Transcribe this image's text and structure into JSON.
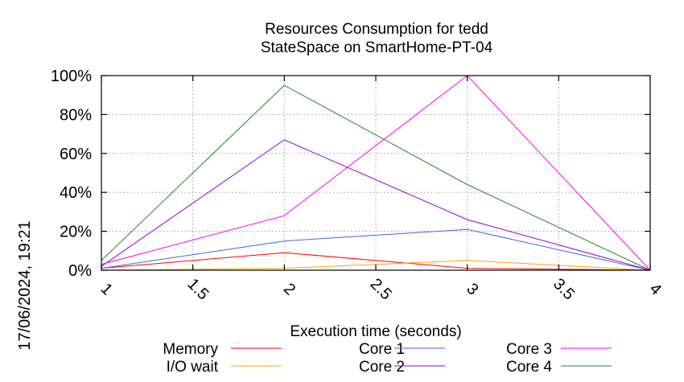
{
  "chart_data": {
    "type": "line",
    "title": [
      "Resources Consumption for tedd",
      "StateSpace on SmartHome-PT-04"
    ],
    "xlabel": "Execution time (seconds)",
    "ylabel": "",
    "xlim": [
      1,
      4
    ],
    "ylim": [
      0,
      100
    ],
    "xticks": [
      1,
      1.5,
      2,
      2.5,
      3,
      3.5,
      4
    ],
    "xtick_labels": [
      "1",
      "1.5",
      "2",
      "2.5",
      "3",
      "3.5",
      "4"
    ],
    "yticks": [
      0,
      20,
      40,
      60,
      80,
      100
    ],
    "ytick_labels": [
      "0%",
      "20%",
      "40%",
      "60%",
      "80%",
      "100%"
    ],
    "grid": true,
    "legend_position": "bottom",
    "timestamp": "17/06/2024, 19:21",
    "x": [
      1,
      2,
      3,
      4
    ],
    "series": [
      {
        "name": "Memory",
        "color": "#ff0000",
        "values": [
          1,
          9,
          1,
          0
        ]
      },
      {
        "name": "I/O wait",
        "color": "#ffa500",
        "values": [
          0,
          1,
          5,
          0
        ]
      },
      {
        "name": "Core 1",
        "color": "#4169e1",
        "values": [
          1,
          15,
          21,
          0
        ]
      },
      {
        "name": "Core 2",
        "color": "#9400d3",
        "values": [
          2,
          67,
          26,
          0
        ]
      },
      {
        "name": "Core 3",
        "color": "#ff00ff",
        "values": [
          3,
          28,
          100,
          0
        ]
      },
      {
        "name": "Core 4",
        "color": "#228b22",
        "values": [
          5,
          95,
          44,
          0
        ]
      }
    ]
  }
}
